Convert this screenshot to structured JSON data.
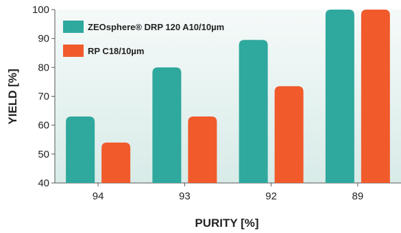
{
  "chart_data": {
    "type": "bar",
    "title": "",
    "xlabel": "PURITY [%]",
    "ylabel": "YIELD [%]",
    "ylim": [
      40,
      100
    ],
    "yticks": [
      40,
      50,
      60,
      70,
      80,
      90,
      100
    ],
    "categories": [
      "94",
      "93",
      "92",
      "89"
    ],
    "series": [
      {
        "name": "ZEOsphere® DRP 120 A10/10µm",
        "color": "#2fa89d",
        "values": [
          63,
          80,
          89.5,
          100
        ]
      },
      {
        "name": "RP C18/10µm",
        "color": "#f15a2b",
        "values": [
          54,
          63,
          73.5,
          100
        ]
      }
    ],
    "grid": false,
    "legend_position": "top-left",
    "plot_background": "#e5f2f0"
  }
}
